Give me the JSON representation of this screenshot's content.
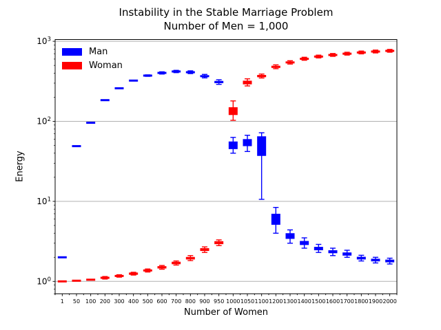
{
  "chart_data": {
    "type": "scatter",
    "style": "box-and-whisker error bars on log y-axis",
    "title": "Instability in the Stable Marriage Problem",
    "subtitle": "Number of Men = 1,000",
    "xlabel": "Number of Women",
    "ylabel": "Energy",
    "yscale": "log",
    "ylim": [
      0.7,
      1050
    ],
    "ytick_exponents": [
      0,
      1,
      2,
      3
    ],
    "grid": "horizontal-major",
    "legend_position": "upper-left",
    "categories": [
      "1",
      "50",
      "100",
      "200",
      "300",
      "400",
      "500",
      "600",
      "700",
      "800",
      "900",
      "950",
      "1000",
      "1050",
      "1100",
      "1200",
      "1300",
      "1400",
      "1500",
      "1600",
      "1700",
      "1800",
      "1900",
      "2000"
    ],
    "point_format": [
      "value",
      "box_low",
      "box_high",
      "whisker_low",
      "whisker_high"
    ],
    "series": [
      {
        "name": "Man",
        "color": "#0000ff",
        "points": [
          [
            2.0,
            1.97,
            2.03,
            1.97,
            2.03
          ],
          [
            49,
            48,
            50,
            48,
            50
          ],
          [
            96,
            94,
            98,
            94,
            98
          ],
          [
            184,
            181,
            187,
            181,
            187
          ],
          [
            259,
            255,
            263,
            255,
            263
          ],
          [
            323,
            318,
            328,
            318,
            328
          ],
          [
            373,
            367,
            379,
            365,
            381
          ],
          [
            403,
            396,
            410,
            390,
            416
          ],
          [
            420,
            413,
            427,
            406,
            434
          ],
          [
            411,
            402,
            420,
            395,
            428
          ],
          [
            367,
            357,
            377,
            349,
            386
          ],
          [
            310,
            300,
            320,
            290,
            331
          ],
          [
            50,
            45,
            56,
            40,
            63
          ],
          [
            55,
            49,
            60,
            42,
            67
          ],
          [
            49,
            37,
            65,
            10.6,
            72
          ],
          [
            5.9,
            5.1,
            7.0,
            4.0,
            8.4
          ],
          [
            3.7,
            3.4,
            4.0,
            3.0,
            4.4
          ],
          [
            3.0,
            2.85,
            3.2,
            2.6,
            3.5
          ],
          [
            2.55,
            2.45,
            2.7,
            2.3,
            2.9
          ],
          [
            2.35,
            2.25,
            2.45,
            2.1,
            2.6
          ],
          [
            2.2,
            2.1,
            2.3,
            2.0,
            2.45
          ],
          [
            1.95,
            1.88,
            2.03,
            1.8,
            2.12
          ],
          [
            1.85,
            1.78,
            1.92,
            1.7,
            2.0
          ],
          [
            1.8,
            1.73,
            1.87,
            1.65,
            1.95
          ]
        ]
      },
      {
        "name": "Woman",
        "color": "#ff0000",
        "points": [
          [
            1.0,
            0.99,
            1.01,
            0.99,
            1.01
          ],
          [
            1.02,
            1.0,
            1.04,
            1.0,
            1.04
          ],
          [
            1.05,
            1.03,
            1.07,
            1.03,
            1.07
          ],
          [
            1.11,
            1.08,
            1.14,
            1.07,
            1.15
          ],
          [
            1.17,
            1.14,
            1.2,
            1.13,
            1.21
          ],
          [
            1.25,
            1.21,
            1.29,
            1.2,
            1.3
          ],
          [
            1.37,
            1.33,
            1.41,
            1.31,
            1.43
          ],
          [
            1.5,
            1.45,
            1.55,
            1.42,
            1.58
          ],
          [
            1.7,
            1.64,
            1.76,
            1.6,
            1.8
          ],
          [
            1.95,
            1.88,
            2.02,
            1.82,
            2.1
          ],
          [
            2.5,
            2.4,
            2.6,
            2.3,
            2.7
          ],
          [
            3.05,
            2.92,
            3.18,
            2.8,
            3.3
          ],
          [
            134,
            120,
            150,
            103,
            180
          ],
          [
            306,
            290,
            322,
            277,
            340
          ],
          [
            368,
            356,
            380,
            348,
            390
          ],
          [
            480,
            465,
            495,
            455,
            508
          ],
          [
            545,
            530,
            560,
            520,
            572
          ],
          [
            605,
            590,
            620,
            580,
            632
          ],
          [
            645,
            629,
            661,
            620,
            672
          ],
          [
            675,
            658,
            692,
            649,
            704
          ],
          [
            700,
            683,
            718,
            673,
            730
          ],
          [
            725,
            707,
            743,
            697,
            756
          ],
          [
            745,
            727,
            764,
            716,
            777
          ],
          [
            760,
            741,
            779,
            731,
            792
          ]
        ]
      }
    ]
  },
  "colors": {
    "man": "#0000ff",
    "woman": "#ff0000",
    "grid": "#b0b0b0",
    "axis": "#000000",
    "background": "#ffffff"
  }
}
